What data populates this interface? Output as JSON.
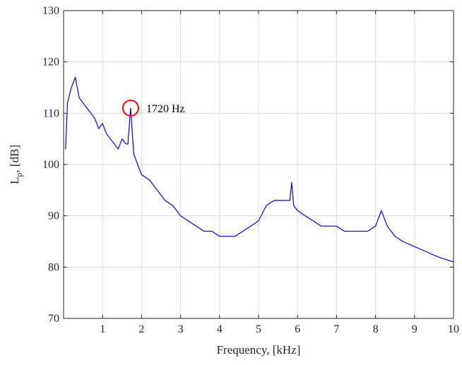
{
  "chart_data": {
    "type": "line",
    "xlabel": "Frequency, [kHz]",
    "ylabel_main": "L",
    "ylabel_sub": "p",
    "ylabel_rest": ", [dB]",
    "xlim": [
      0,
      10
    ],
    "ylim": [
      70,
      130
    ],
    "xticks": [
      1,
      2,
      3,
      4,
      5,
      6,
      7,
      8,
      9,
      10
    ],
    "yticks": [
      70,
      80,
      90,
      100,
      110,
      120,
      130
    ],
    "grid": true,
    "series": [
      {
        "color": "#0000ff",
        "x": [
          0.05,
          0.1,
          0.2,
          0.3,
          0.4,
          0.5,
          0.6,
          0.7,
          0.8,
          0.9,
          1.0,
          1.1,
          1.2,
          1.3,
          1.4,
          1.5,
          1.6,
          1.65,
          1.72,
          1.8,
          1.9,
          2.0,
          2.2,
          2.4,
          2.6,
          2.8,
          3.0,
          3.2,
          3.4,
          3.6,
          3.8,
          4.0,
          4.2,
          4.4,
          4.6,
          4.8,
          5.0,
          5.2,
          5.4,
          5.6,
          5.8,
          5.85,
          5.9,
          6.0,
          6.2,
          6.4,
          6.6,
          6.8,
          7.0,
          7.2,
          7.4,
          7.6,
          7.8,
          8.0,
          8.15,
          8.3,
          8.5,
          8.7,
          9.0,
          9.3,
          9.6,
          10.0
        ],
        "y": [
          103,
          112,
          115,
          117,
          113,
          112,
          111,
          110,
          109,
          107,
          108,
          106,
          105,
          104,
          103,
          105,
          104,
          104,
          111,
          102,
          100,
          98,
          97,
          95,
          93,
          92,
          90,
          89,
          88,
          87,
          87,
          86,
          86,
          86,
          87,
          88,
          89,
          92,
          93,
          93,
          93,
          96.5,
          92,
          91,
          90,
          89,
          88,
          88,
          88,
          87,
          87,
          87,
          87,
          88,
          91,
          88,
          86,
          85,
          84,
          83,
          82,
          81
        ]
      }
    ],
    "annotation": {
      "x": 1.72,
      "y": 111,
      "label": "1720 Hz",
      "marker_color": "#ff0000"
    }
  }
}
